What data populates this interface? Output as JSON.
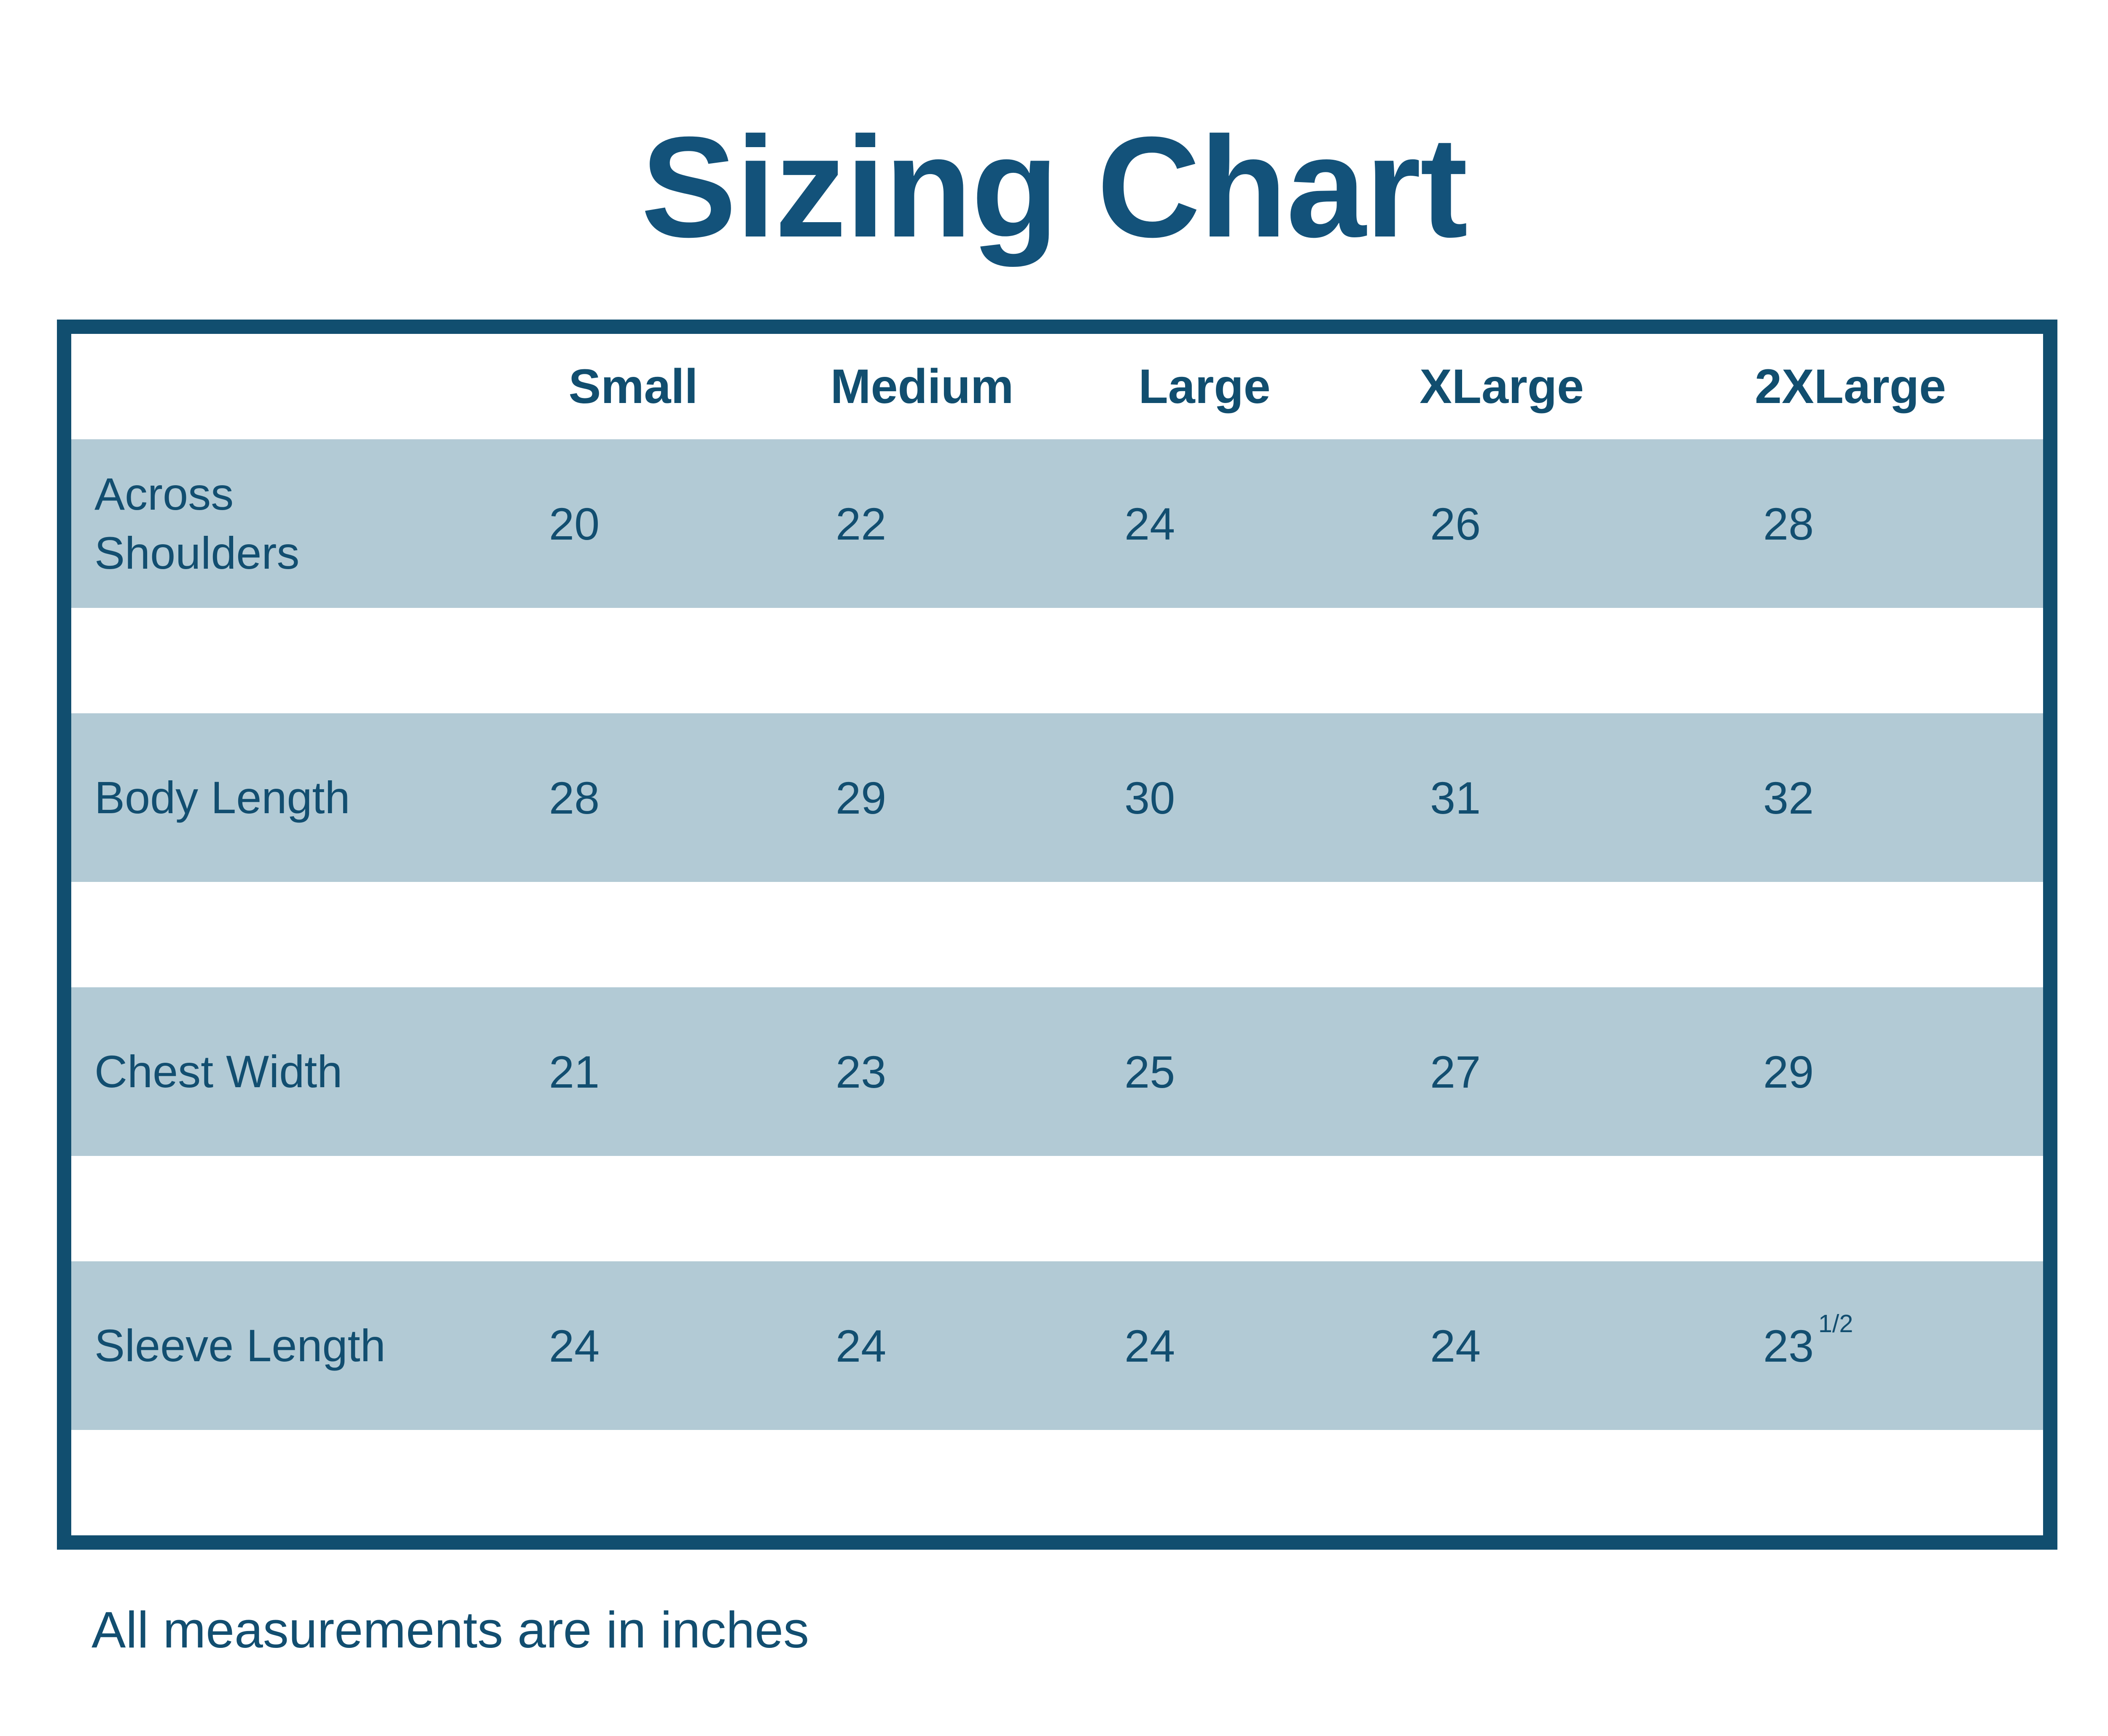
{
  "title": "Sizing Chart",
  "footer_note": "All measurements are in inches",
  "colors": {
    "dark_blue": "#114E6F",
    "title_blue": "#13527A",
    "band_light_blue": "#B2CAD5",
    "background": "#FFFFFF"
  },
  "chart_data": {
    "type": "table",
    "title": "Sizing Chart",
    "units": "inches",
    "columns": [
      "Small",
      "Medium",
      "Large",
      "XLarge",
      "2XLarge"
    ],
    "rows": [
      {
        "label": "Across Shoulders",
        "values": [
          "20",
          "22",
          "24",
          "26",
          "28"
        ]
      },
      {
        "label": "Body Length",
        "values": [
          "28",
          "29",
          "30",
          "31",
          "32"
        ]
      },
      {
        "label": "Chest Width",
        "values": [
          "21",
          "23",
          "25",
          "27",
          "29"
        ]
      },
      {
        "label": "Sleeve Length",
        "values": [
          "24",
          "24",
          "24",
          "24",
          "23"
        ],
        "last_value_fraction": "1/2"
      }
    ]
  }
}
